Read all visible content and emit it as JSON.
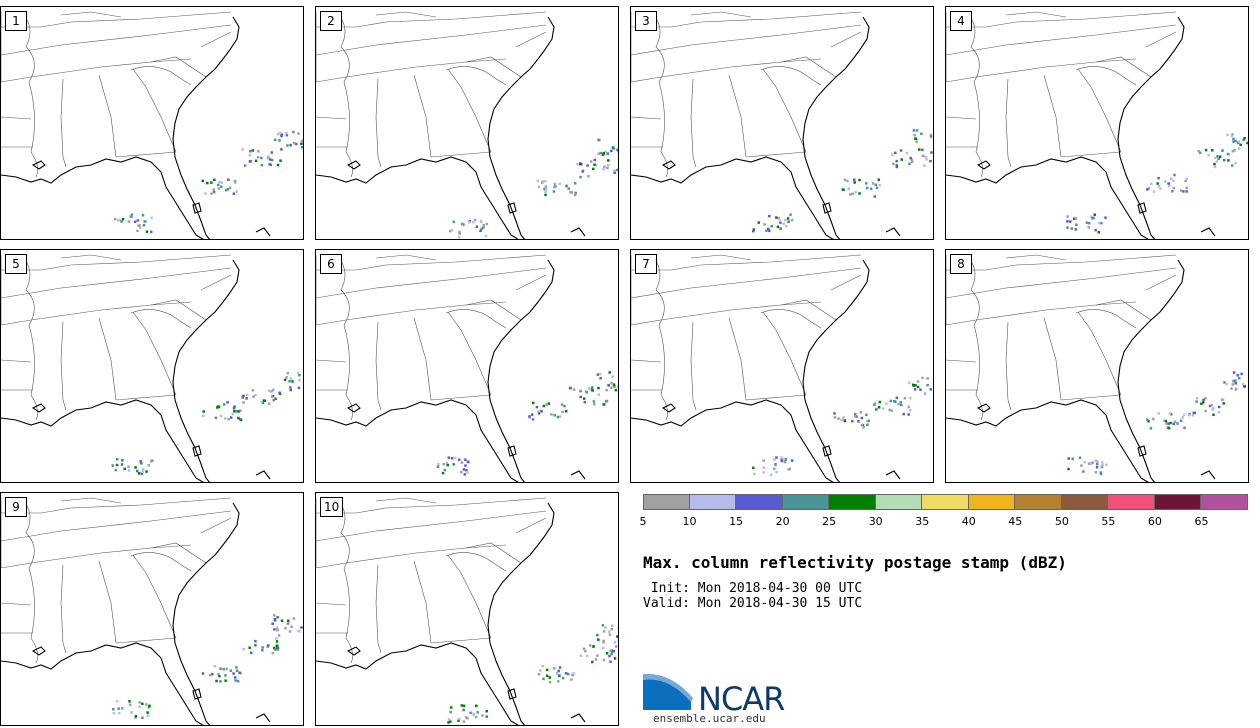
{
  "panels": [
    "1",
    "2",
    "3",
    "4",
    "5",
    "6",
    "7",
    "8",
    "9",
    "10"
  ],
  "title": "Max. column reflectivity postage stamp (dBZ)",
  "init": " Init: Mon 2018-04-30 00 UTC",
  "valid": "Valid: Mon 2018-04-30 15 UTC",
  "colorbar": {
    "colors": [
      "#a0a0a0",
      "#b4bcec",
      "#5a5ad2",
      "#4a9696",
      "#008000",
      "#b4dcb4",
      "#f0dc64",
      "#f0b41e",
      "#b4822e",
      "#8c5a3c",
      "#f0507a",
      "#6e1437",
      "#b450a0"
    ],
    "labels": [
      "5",
      "10",
      "15",
      "20",
      "25",
      "30",
      "35",
      "40",
      "45",
      "50",
      "55",
      "60",
      "65"
    ]
  },
  "logo": {
    "name": "NCAR",
    "url": "ensemble.ucar.edu"
  }
}
